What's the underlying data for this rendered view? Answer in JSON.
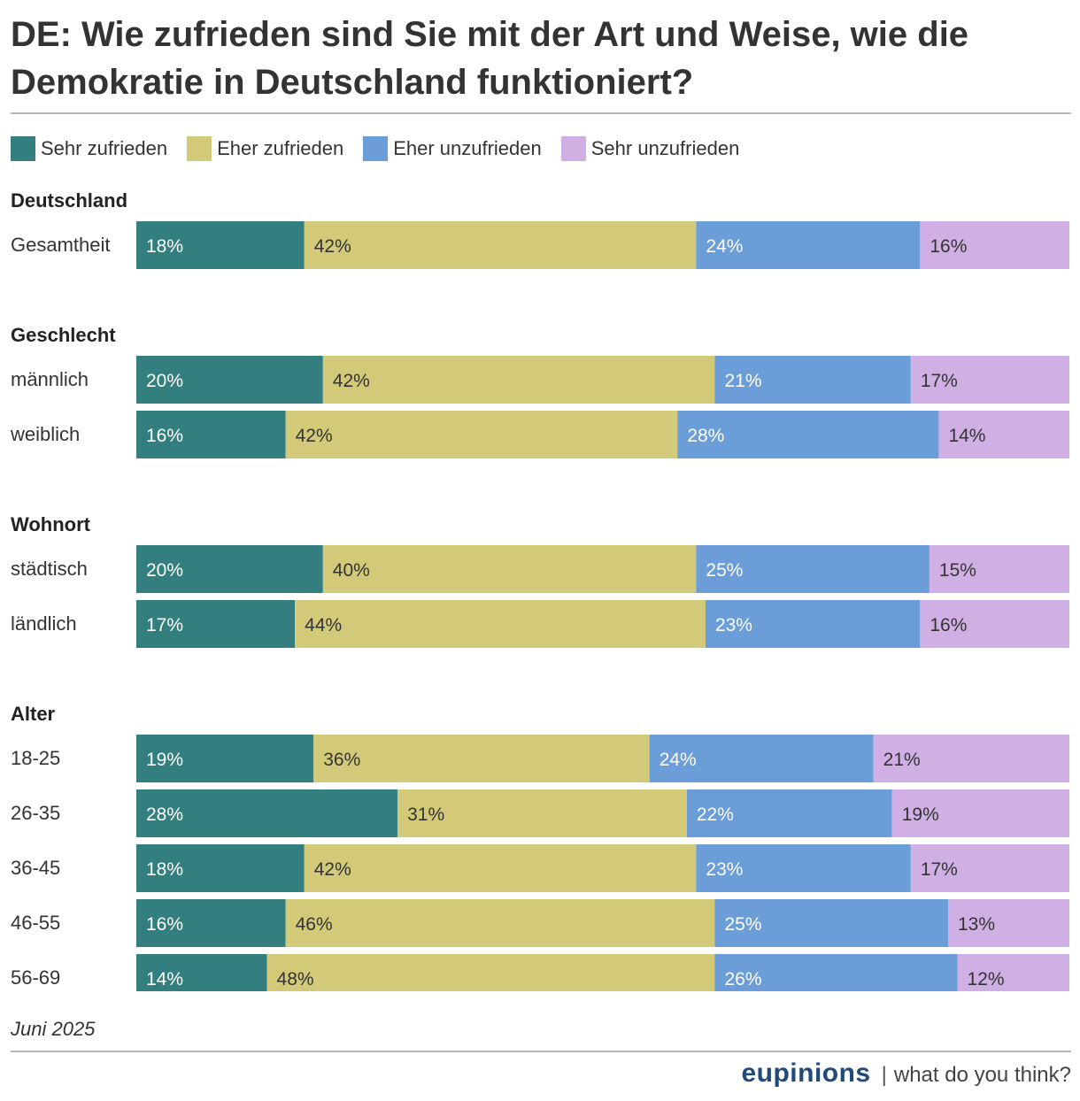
{
  "title": "DE: Wie zufrieden sind Sie mit der Art und Weise, wie die Demokratie in Deutschland funktioniert?",
  "date": "Juni 2025",
  "footer": {
    "brand": "eupinions",
    "separator": "|",
    "tagline": "what do you think?"
  },
  "chart_data": {
    "type": "bar",
    "orientation": "horizontal",
    "stacked": true,
    "percent_suffix": "%",
    "legend_position": "top",
    "series": [
      {
        "name": "Sehr zufrieden",
        "color": "#337f7f",
        "label_color": "#ffffff"
      },
      {
        "name": "Eher zufrieden",
        "color": "#d2ca78",
        "label_color": "#333333"
      },
      {
        "name": "Eher unzufrieden",
        "color": "#6b9dd8",
        "label_color": "#ffffff"
      },
      {
        "name": "Sehr unzufrieden",
        "color": "#d0b0e4",
        "label_color": "#333333"
      }
    ],
    "groups": [
      {
        "name": "Deutschland",
        "rows": [
          {
            "label": "Gesamtheit",
            "values": [
              18,
              42,
              24,
              16
            ]
          }
        ]
      },
      {
        "name": "Geschlecht",
        "rows": [
          {
            "label": "männlich",
            "values": [
              20,
              42,
              21,
              17
            ]
          },
          {
            "label": "weiblich",
            "values": [
              16,
              42,
              28,
              14
            ]
          }
        ]
      },
      {
        "name": "Wohnort",
        "rows": [
          {
            "label": "städtisch",
            "values": [
              20,
              40,
              25,
              15
            ]
          },
          {
            "label": "ländlich",
            "values": [
              17,
              44,
              23,
              16
            ]
          }
        ]
      },
      {
        "name": "Alter",
        "rows": [
          {
            "label": "18-25",
            "values": [
              19,
              36,
              24,
              21
            ]
          },
          {
            "label": "26-35",
            "values": [
              28,
              31,
              22,
              19
            ]
          },
          {
            "label": "36-45",
            "values": [
              18,
              42,
              23,
              17
            ]
          },
          {
            "label": "46-55",
            "values": [
              16,
              46,
              25,
              13
            ]
          },
          {
            "label": "56-69",
            "values": [
              14,
              48,
              26,
              12
            ]
          }
        ]
      }
    ]
  }
}
